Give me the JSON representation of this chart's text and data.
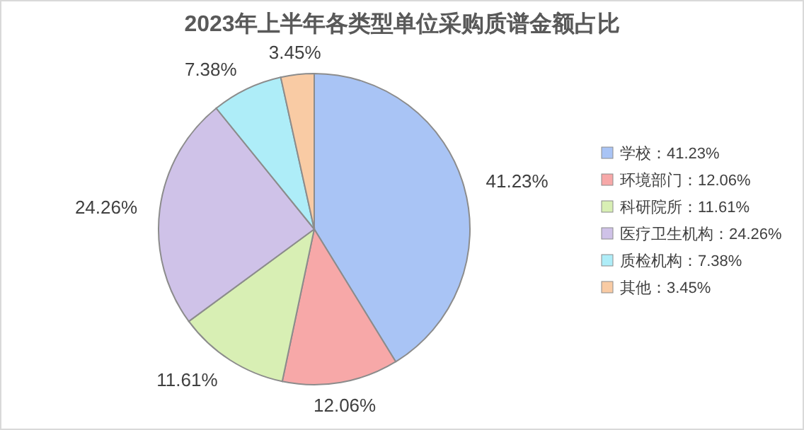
{
  "chart_data": {
    "type": "pie",
    "title": "2023年上半年各类型单位采购质谱金额占比",
    "categories": [
      "学校",
      "环境部门",
      "科研院所",
      "医疗卫生机构",
      "质检机构",
      "其他"
    ],
    "values": [
      41.23,
      12.06,
      11.61,
      24.26,
      7.38,
      3.45
    ],
    "value_labels": [
      "41.23%",
      "12.06%",
      "11.61%",
      "24.26%",
      "7.38%",
      "3.45%"
    ],
    "colors": [
      "#a9c4f5",
      "#f7a8a8",
      "#d8efb4",
      "#cfc2e8",
      "#aeedf8",
      "#f9cba4"
    ],
    "legend": "right"
  }
}
